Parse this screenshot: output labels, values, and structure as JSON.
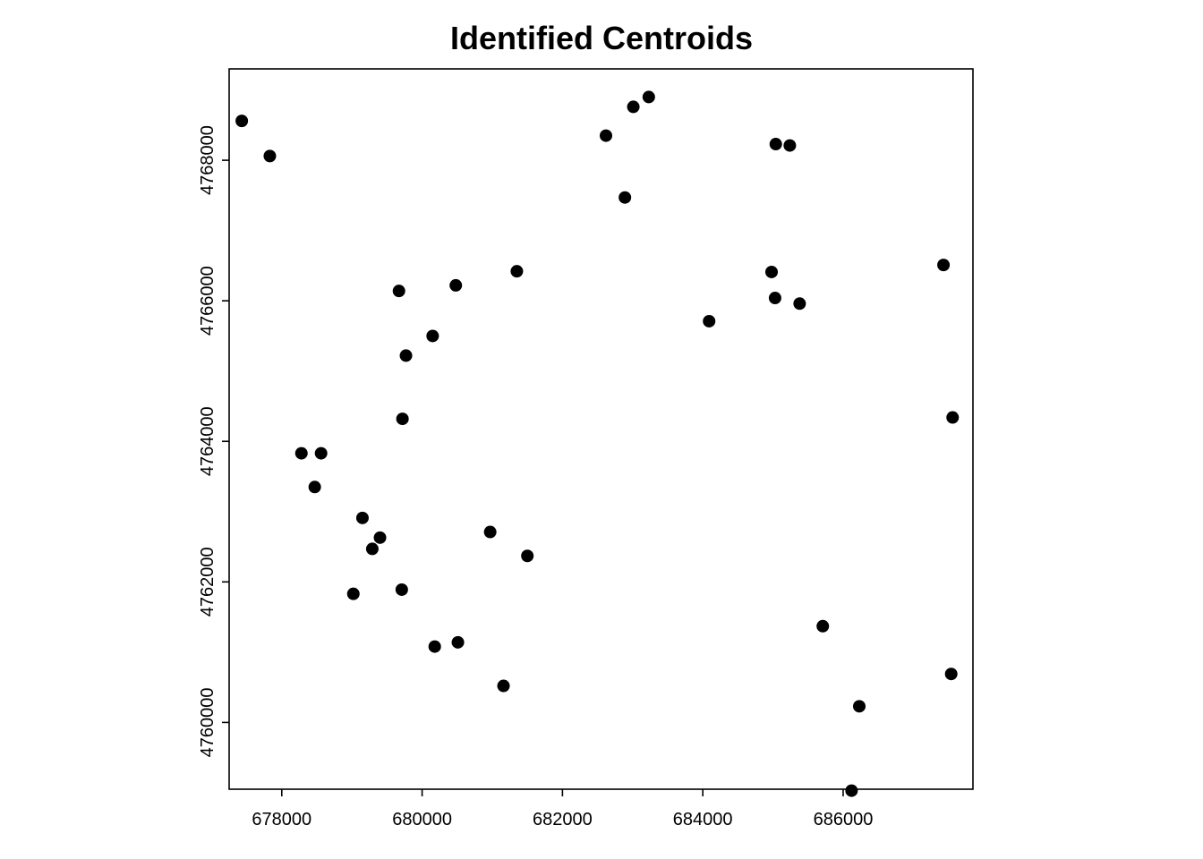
{
  "chart_data": {
    "type": "scatter",
    "title": "Identified Centroids",
    "xlabel": "",
    "ylabel": "",
    "xlim": [
      677250,
      687850
    ],
    "ylim": [
      4759050,
      4769300
    ],
    "x_ticks": [
      678000,
      680000,
      682000,
      684000,
      686000
    ],
    "y_ticks": [
      4760000,
      4762000,
      4764000,
      4766000,
      4768000
    ],
    "grid": false,
    "point_color": "#000000",
    "points": [
      {
        "x": 677430,
        "y": 4768560
      },
      {
        "x": 677830,
        "y": 4768060
      },
      {
        "x": 682620,
        "y": 4768350
      },
      {
        "x": 683010,
        "y": 4768760
      },
      {
        "x": 683230,
        "y": 4768900
      },
      {
        "x": 682890,
        "y": 4767470
      },
      {
        "x": 685040,
        "y": 4768230
      },
      {
        "x": 685240,
        "y": 4768210
      },
      {
        "x": 687430,
        "y": 4766510
      },
      {
        "x": 684980,
        "y": 4766410
      },
      {
        "x": 685030,
        "y": 4766040
      },
      {
        "x": 685380,
        "y": 4765960
      },
      {
        "x": 684090,
        "y": 4765710
      },
      {
        "x": 681350,
        "y": 4766420
      },
      {
        "x": 680480,
        "y": 4766220
      },
      {
        "x": 679670,
        "y": 4766140
      },
      {
        "x": 680150,
        "y": 4765500
      },
      {
        "x": 679770,
        "y": 4765220
      },
      {
        "x": 679720,
        "y": 4764320
      },
      {
        "x": 687560,
        "y": 4764340
      },
      {
        "x": 678280,
        "y": 4763830
      },
      {
        "x": 678560,
        "y": 4763830
      },
      {
        "x": 678470,
        "y": 4763350
      },
      {
        "x": 679150,
        "y": 4762910
      },
      {
        "x": 679400,
        "y": 4762630
      },
      {
        "x": 679290,
        "y": 4762470
      },
      {
        "x": 680970,
        "y": 4762710
      },
      {
        "x": 681500,
        "y": 4762370
      },
      {
        "x": 679020,
        "y": 4761830
      },
      {
        "x": 679710,
        "y": 4761890
      },
      {
        "x": 685710,
        "y": 4761370
      },
      {
        "x": 680180,
        "y": 4761080
      },
      {
        "x": 680510,
        "y": 4761140
      },
      {
        "x": 681160,
        "y": 4760520
      },
      {
        "x": 687540,
        "y": 4760690
      },
      {
        "x": 686230,
        "y": 4760230
      },
      {
        "x": 686120,
        "y": 4759030
      }
    ]
  }
}
